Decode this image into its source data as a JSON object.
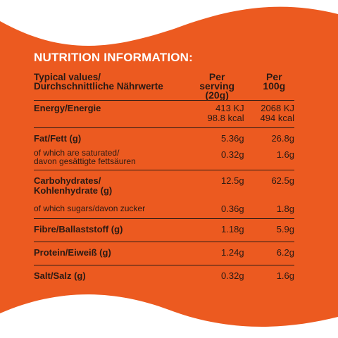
{
  "colors": {
    "background": "#ffffff",
    "panel": "#ec5a20",
    "text": "#2a1a14",
    "title": "#ffffff"
  },
  "title": "NUTRITION INFORMATION:",
  "header": {
    "col1_line1": "Typical values/",
    "col1_line2": "Durchschnittliche Nährwerte",
    "col2_line1": "Per",
    "col2_line2": "serving (20g)",
    "col3_line1": "Per",
    "col3_line2": "100g"
  },
  "rows": [
    {
      "label": "Energy/Energie",
      "serving_line1": "413 KJ",
      "serving_line2": "98.8 kcal",
      "per100_line1": "2068 KJ",
      "per100_line2": "494 kcal"
    },
    {
      "label": "Fat/Fett (g)",
      "serving": "5.36g",
      "per100": "26.8g"
    },
    {
      "label_line1": "of which are saturated/",
      "label_line2": "davon gesättigte fettsäuren",
      "serving": "0.32g",
      "per100": "1.6g"
    },
    {
      "label_line1": "Carbohydrates/",
      "label_line2": "Kohlenhydrate (g)",
      "serving": "12.5g",
      "per100": "62.5g"
    },
    {
      "label": "of which sugars/davon zucker",
      "serving": "0.36g",
      "per100": "1.8g"
    },
    {
      "label": "Fibre/Ballaststoff (g)",
      "serving": "1.18g",
      "per100": "5.9g"
    },
    {
      "label": "Protein/Eiweiß (g)",
      "serving": "1.24g",
      "per100": "6.2g"
    },
    {
      "label": "Salt/Salz (g)",
      "serving": "0.32g",
      "per100": "1.6g"
    }
  ]
}
